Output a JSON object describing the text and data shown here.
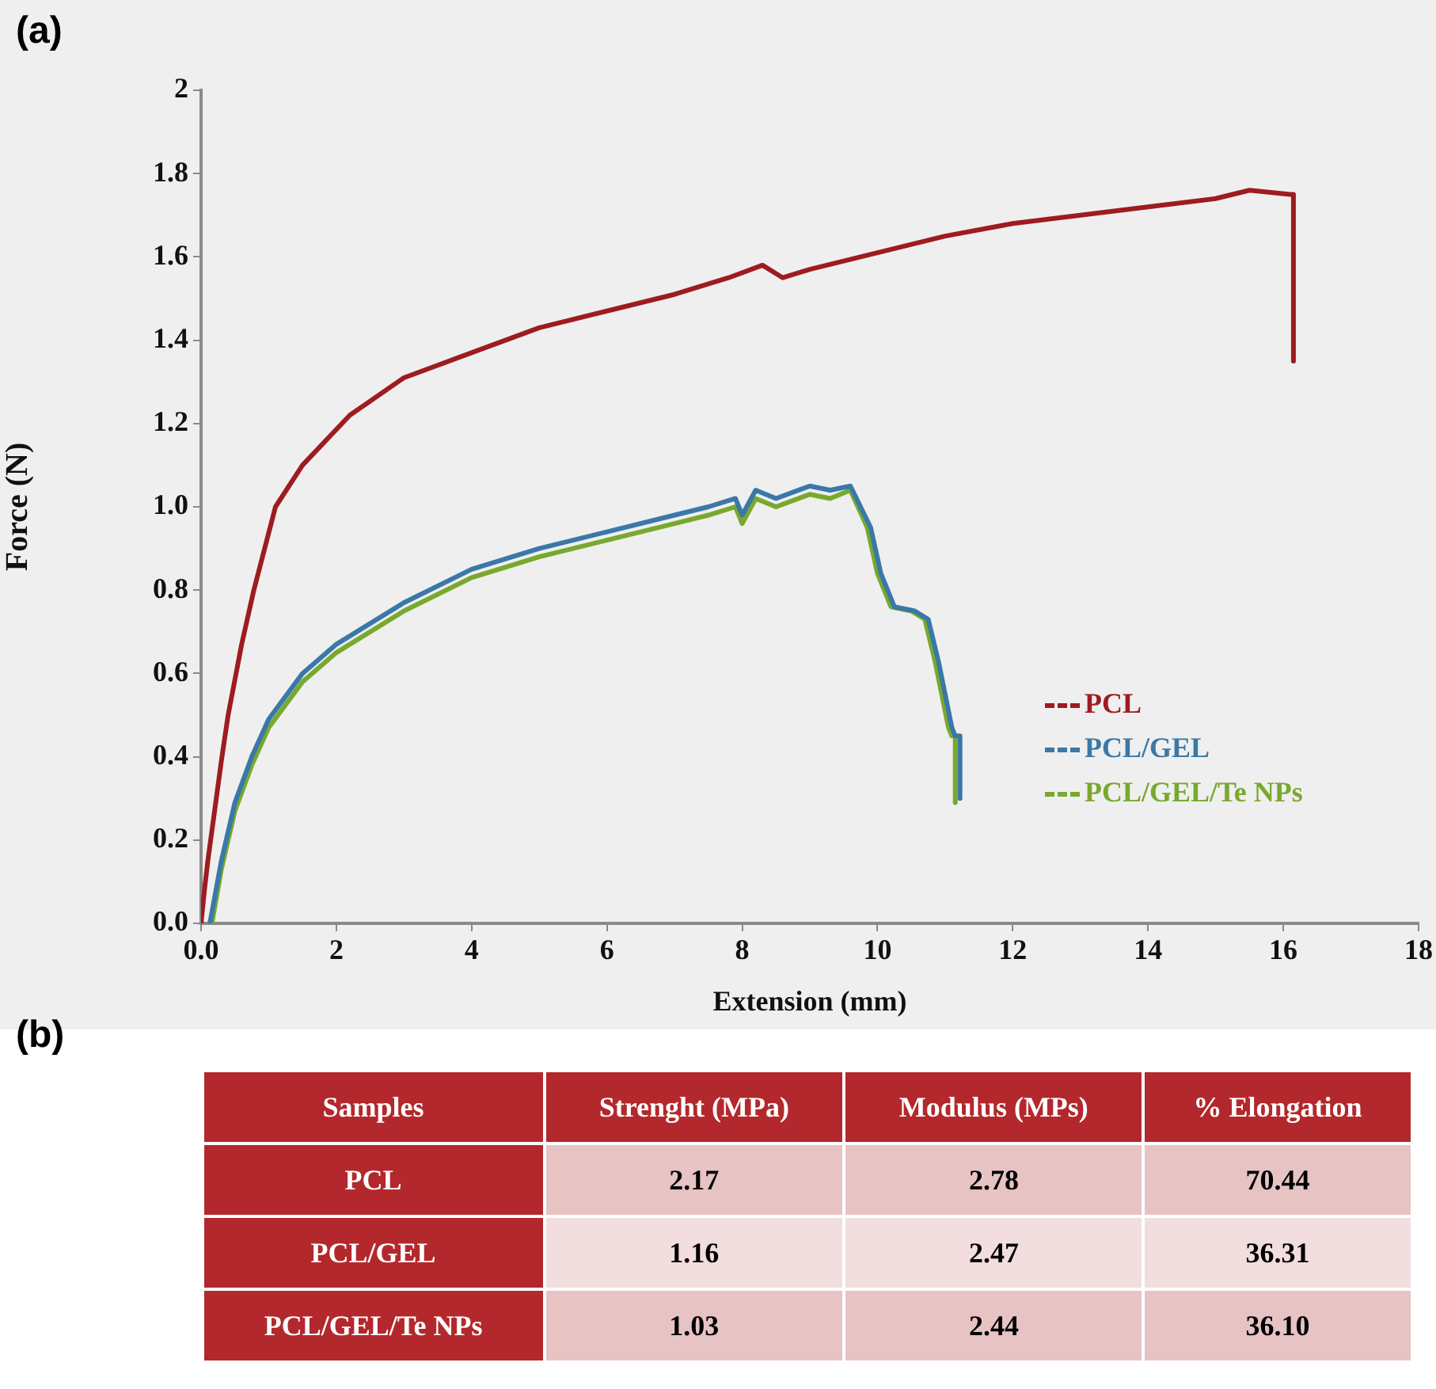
{
  "chart_data": [
    {
      "type": "line",
      "title": "(a)",
      "xlabel": "Extension (mm)",
      "ylabel": "Force (N)",
      "xlim": [
        0,
        18
      ],
      "ylim": [
        0,
        2
      ],
      "xticks": [
        {
          "value": 0,
          "label": "0.0"
        },
        2,
        4,
        6,
        8,
        10,
        12,
        14,
        16,
        18
      ],
      "yticks": [
        {
          "value": 0,
          "label": "0.0"
        },
        0.2,
        0.4,
        0.6,
        0.8,
        {
          "value": 1,
          "label": "1.0"
        },
        1.2,
        1.4,
        1.6,
        1.8,
        2
      ],
      "legend": "bottom right",
      "series": [
        {
          "name": "PCL",
          "color": "#9e1b1f",
          "x": [
            0,
            0.05,
            0.1,
            0.2,
            0.3,
            0.4,
            0.6,
            0.78,
            1.1,
            1.5,
            2.2,
            3,
            4,
            5,
            6,
            7,
            7.8,
            8.3,
            8.6,
            9,
            10,
            11,
            12,
            13,
            14,
            15,
            15.5,
            16.1,
            16.15,
            16.15
          ],
          "values": [
            0,
            0.08,
            0.15,
            0.27,
            0.39,
            0.5,
            0.67,
            0.8,
            1.0,
            1.1,
            1.22,
            1.31,
            1.37,
            1.43,
            1.47,
            1.51,
            1.55,
            1.58,
            1.55,
            1.57,
            1.61,
            1.65,
            1.68,
            1.7,
            1.72,
            1.74,
            1.76,
            1.75,
            1.75,
            1.35
          ]
        },
        {
          "name": "PCL/GEL",
          "color": "#3a78a8",
          "x": [
            0.13,
            0.3,
            0.5,
            0.75,
            1,
            1.5,
            2,
            3,
            4,
            5,
            6,
            7,
            7.5,
            7.9,
            8.0,
            8.2,
            8.5,
            9,
            9.3,
            9.6,
            9.9,
            10.05,
            10.25,
            10.55,
            10.75,
            10.9,
            11.0,
            11.1,
            11.15,
            11.22,
            11.22
          ],
          "values": [
            0,
            0.15,
            0.29,
            0.4,
            0.49,
            0.6,
            0.67,
            0.77,
            0.85,
            0.9,
            0.94,
            0.98,
            1.0,
            1.02,
            0.98,
            1.04,
            1.02,
            1.05,
            1.04,
            1.05,
            0.95,
            0.84,
            0.76,
            0.75,
            0.73,
            0.63,
            0.55,
            0.47,
            0.45,
            0.45,
            0.3
          ]
        },
        {
          "name": "PCL/GEL/Te NPs",
          "color": "#79a82e",
          "x": [
            0.16,
            0.3,
            0.5,
            0.75,
            1,
            1.5,
            2,
            3,
            4,
            5,
            6,
            7,
            7.5,
            7.9,
            8.0,
            8.2,
            8.5,
            9,
            9.3,
            9.6,
            9.85,
            10.0,
            10.2,
            10.5,
            10.7,
            10.85,
            10.95,
            11.05,
            11.1,
            11.15,
            11.15
          ],
          "values": [
            0,
            0.13,
            0.27,
            0.38,
            0.47,
            0.58,
            0.65,
            0.75,
            0.83,
            0.88,
            0.92,
            0.96,
            0.98,
            1.0,
            0.96,
            1.02,
            1.0,
            1.03,
            1.02,
            1.04,
            0.95,
            0.84,
            0.76,
            0.75,
            0.73,
            0.63,
            0.55,
            0.47,
            0.45,
            0.45,
            0.29
          ]
        }
      ]
    },
    {
      "type": "other",
      "title": "(b)",
      "ylabel": "Samples",
      "categories": [
        "Strenght (MPa)",
        "Modulus (MPs)",
        "% Elongation"
      ],
      "y_categories": [
        "PCL",
        "PCL/GEL",
        "PCL/GEL/Te NPs"
      ],
      "cell_labels": [
        [
          "2.17",
          "2.78",
          "70.44"
        ],
        [
          "1.16",
          "2.47",
          "36.31"
        ],
        [
          "1.03",
          "2.44",
          "36.10"
        ]
      ]
    }
  ]
}
